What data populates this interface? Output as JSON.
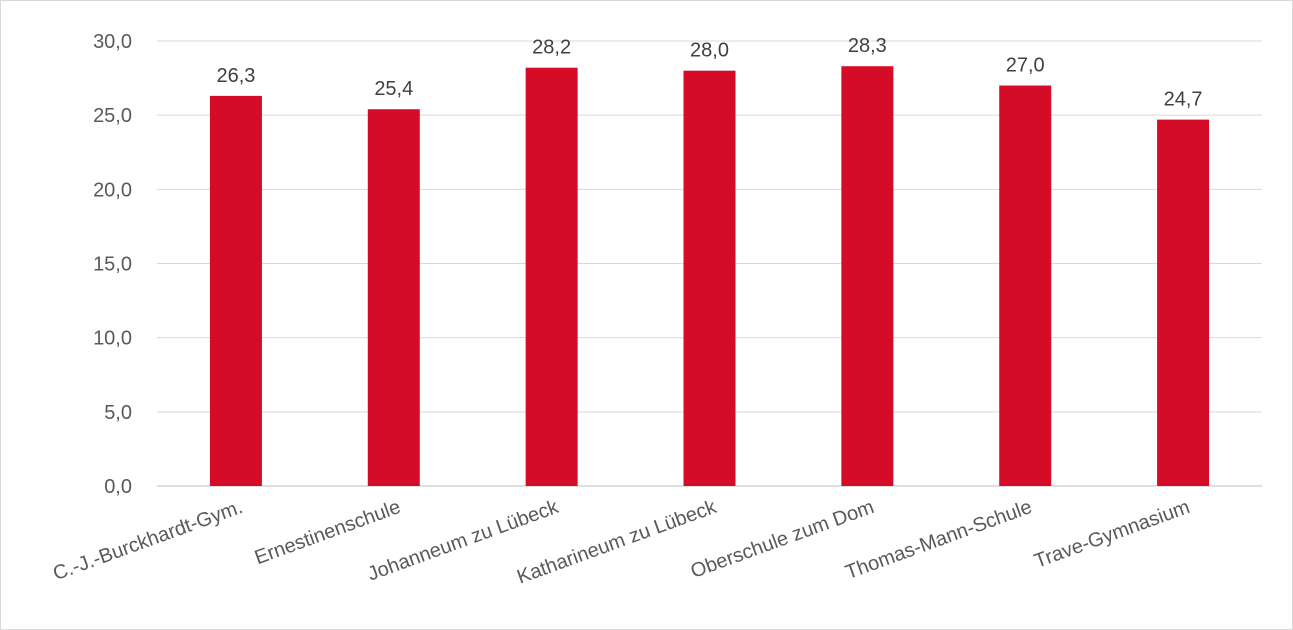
{
  "chart_data": {
    "type": "bar",
    "categories": [
      "C.-J.-Burckhardt-Gym.",
      "Ernestinenschule",
      "Johanneum zu Lübeck",
      "Katharineum zu Lübeck",
      "Oberschule zum Dom",
      "Thomas-Mann-Schule",
      "Trave-Gymnasium"
    ],
    "values": [
      26.3,
      25.4,
      28.2,
      28.0,
      28.3,
      27.0,
      24.7
    ],
    "data_labels": [
      "26,3",
      "25,4",
      "28,2",
      "28,0",
      "28,3",
      "27,0",
      "24,7"
    ],
    "y_ticks": [
      0,
      5,
      10,
      15,
      20,
      25,
      30
    ],
    "y_tick_labels": [
      "0,0",
      "5,0",
      "10,0",
      "15,0",
      "20,0",
      "25,0",
      "30,0"
    ],
    "ylim": [
      0,
      30
    ],
    "grid": true,
    "bar_color": "#d50c28",
    "title": "",
    "xlabel": "",
    "ylabel": ""
  }
}
